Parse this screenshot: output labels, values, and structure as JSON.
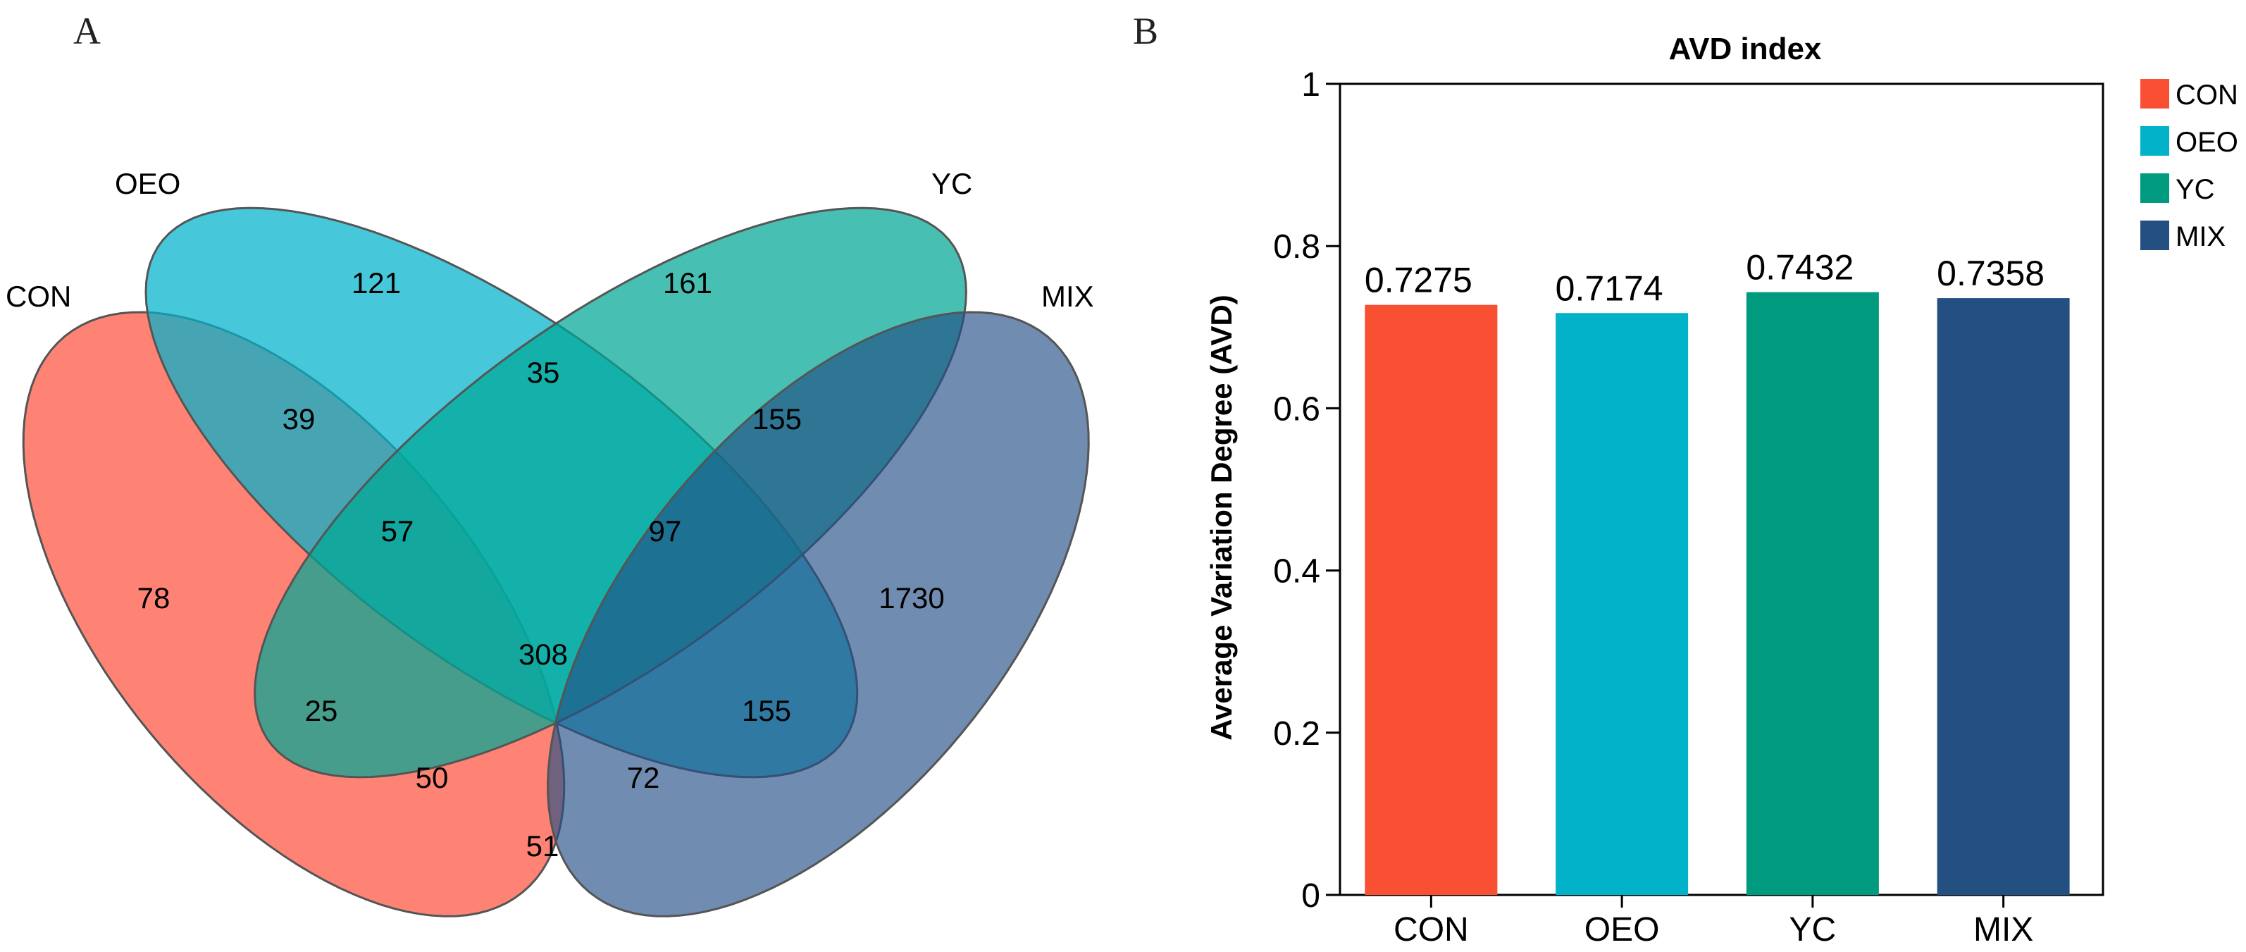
{
  "panels": {
    "a": "A",
    "b": "B"
  },
  "chart_data": [
    {
      "type": "venn",
      "sets": [
        {
          "name": "CON",
          "color": "#FF5A45"
        },
        {
          "name": "OEO",
          "color": "#00B3CC"
        },
        {
          "name": "YC",
          "color": "#00A896"
        },
        {
          "name": "MIX",
          "color": "#244F85"
        }
      ],
      "regions": [
        {
          "sets": [
            "OEO"
          ],
          "value": "121"
        },
        {
          "sets": [
            "YC"
          ],
          "value": "161"
        },
        {
          "sets": [
            "CON",
            "OEO"
          ],
          "value": "39"
        },
        {
          "sets": [
            "OEO",
            "YC"
          ],
          "value": "35"
        },
        {
          "sets": [
            "YC",
            "MIX"
          ],
          "value": "155"
        },
        {
          "sets": [
            "CON",
            "OEO",
            "YC"
          ],
          "value": "57"
        },
        {
          "sets": [
            "OEO",
            "YC",
            "MIX"
          ],
          "value": "97"
        },
        {
          "sets": [
            "CON"
          ],
          "value": "78"
        },
        {
          "sets": [
            "MIX"
          ],
          "value": "1730"
        },
        {
          "sets": [
            "CON",
            "OEO",
            "YC",
            "MIX"
          ],
          "value": "308"
        },
        {
          "sets": [
            "CON",
            "YC"
          ],
          "value": "25"
        },
        {
          "sets": [
            "OEO",
            "MIX"
          ],
          "value": "155"
        },
        {
          "sets": [
            "CON",
            "YC",
            "MIX"
          ],
          "value": "50"
        },
        {
          "sets": [
            "CON",
            "OEO",
            "MIX"
          ],
          "value": "72"
        },
        {
          "sets": [
            "CON",
            "MIX"
          ],
          "value": "51"
        }
      ]
    },
    {
      "type": "bar",
      "title": "AVD index",
      "xlabel": "",
      "ylabel": "Average Variation Degree (AVD)",
      "ylim": [
        0,
        1
      ],
      "yticks": [
        "0",
        "0.2",
        "0.4",
        "0.6",
        "0.8",
        "1"
      ],
      "categories": [
        "CON",
        "OEO",
        "YC",
        "MIX"
      ],
      "values": [
        0.7275,
        0.7174,
        0.7432,
        0.7358
      ],
      "value_labels": [
        "0.7275",
        "0.7174",
        "0.7432",
        "0.7358"
      ],
      "colors": [
        "#F94F33",
        "#01B2C8",
        "#009A7E",
        "#234F81"
      ],
      "legend": {
        "placement": "right",
        "entries": [
          "CON",
          "OEO",
          "YC",
          "MIX"
        ]
      },
      "grid": false
    }
  ]
}
